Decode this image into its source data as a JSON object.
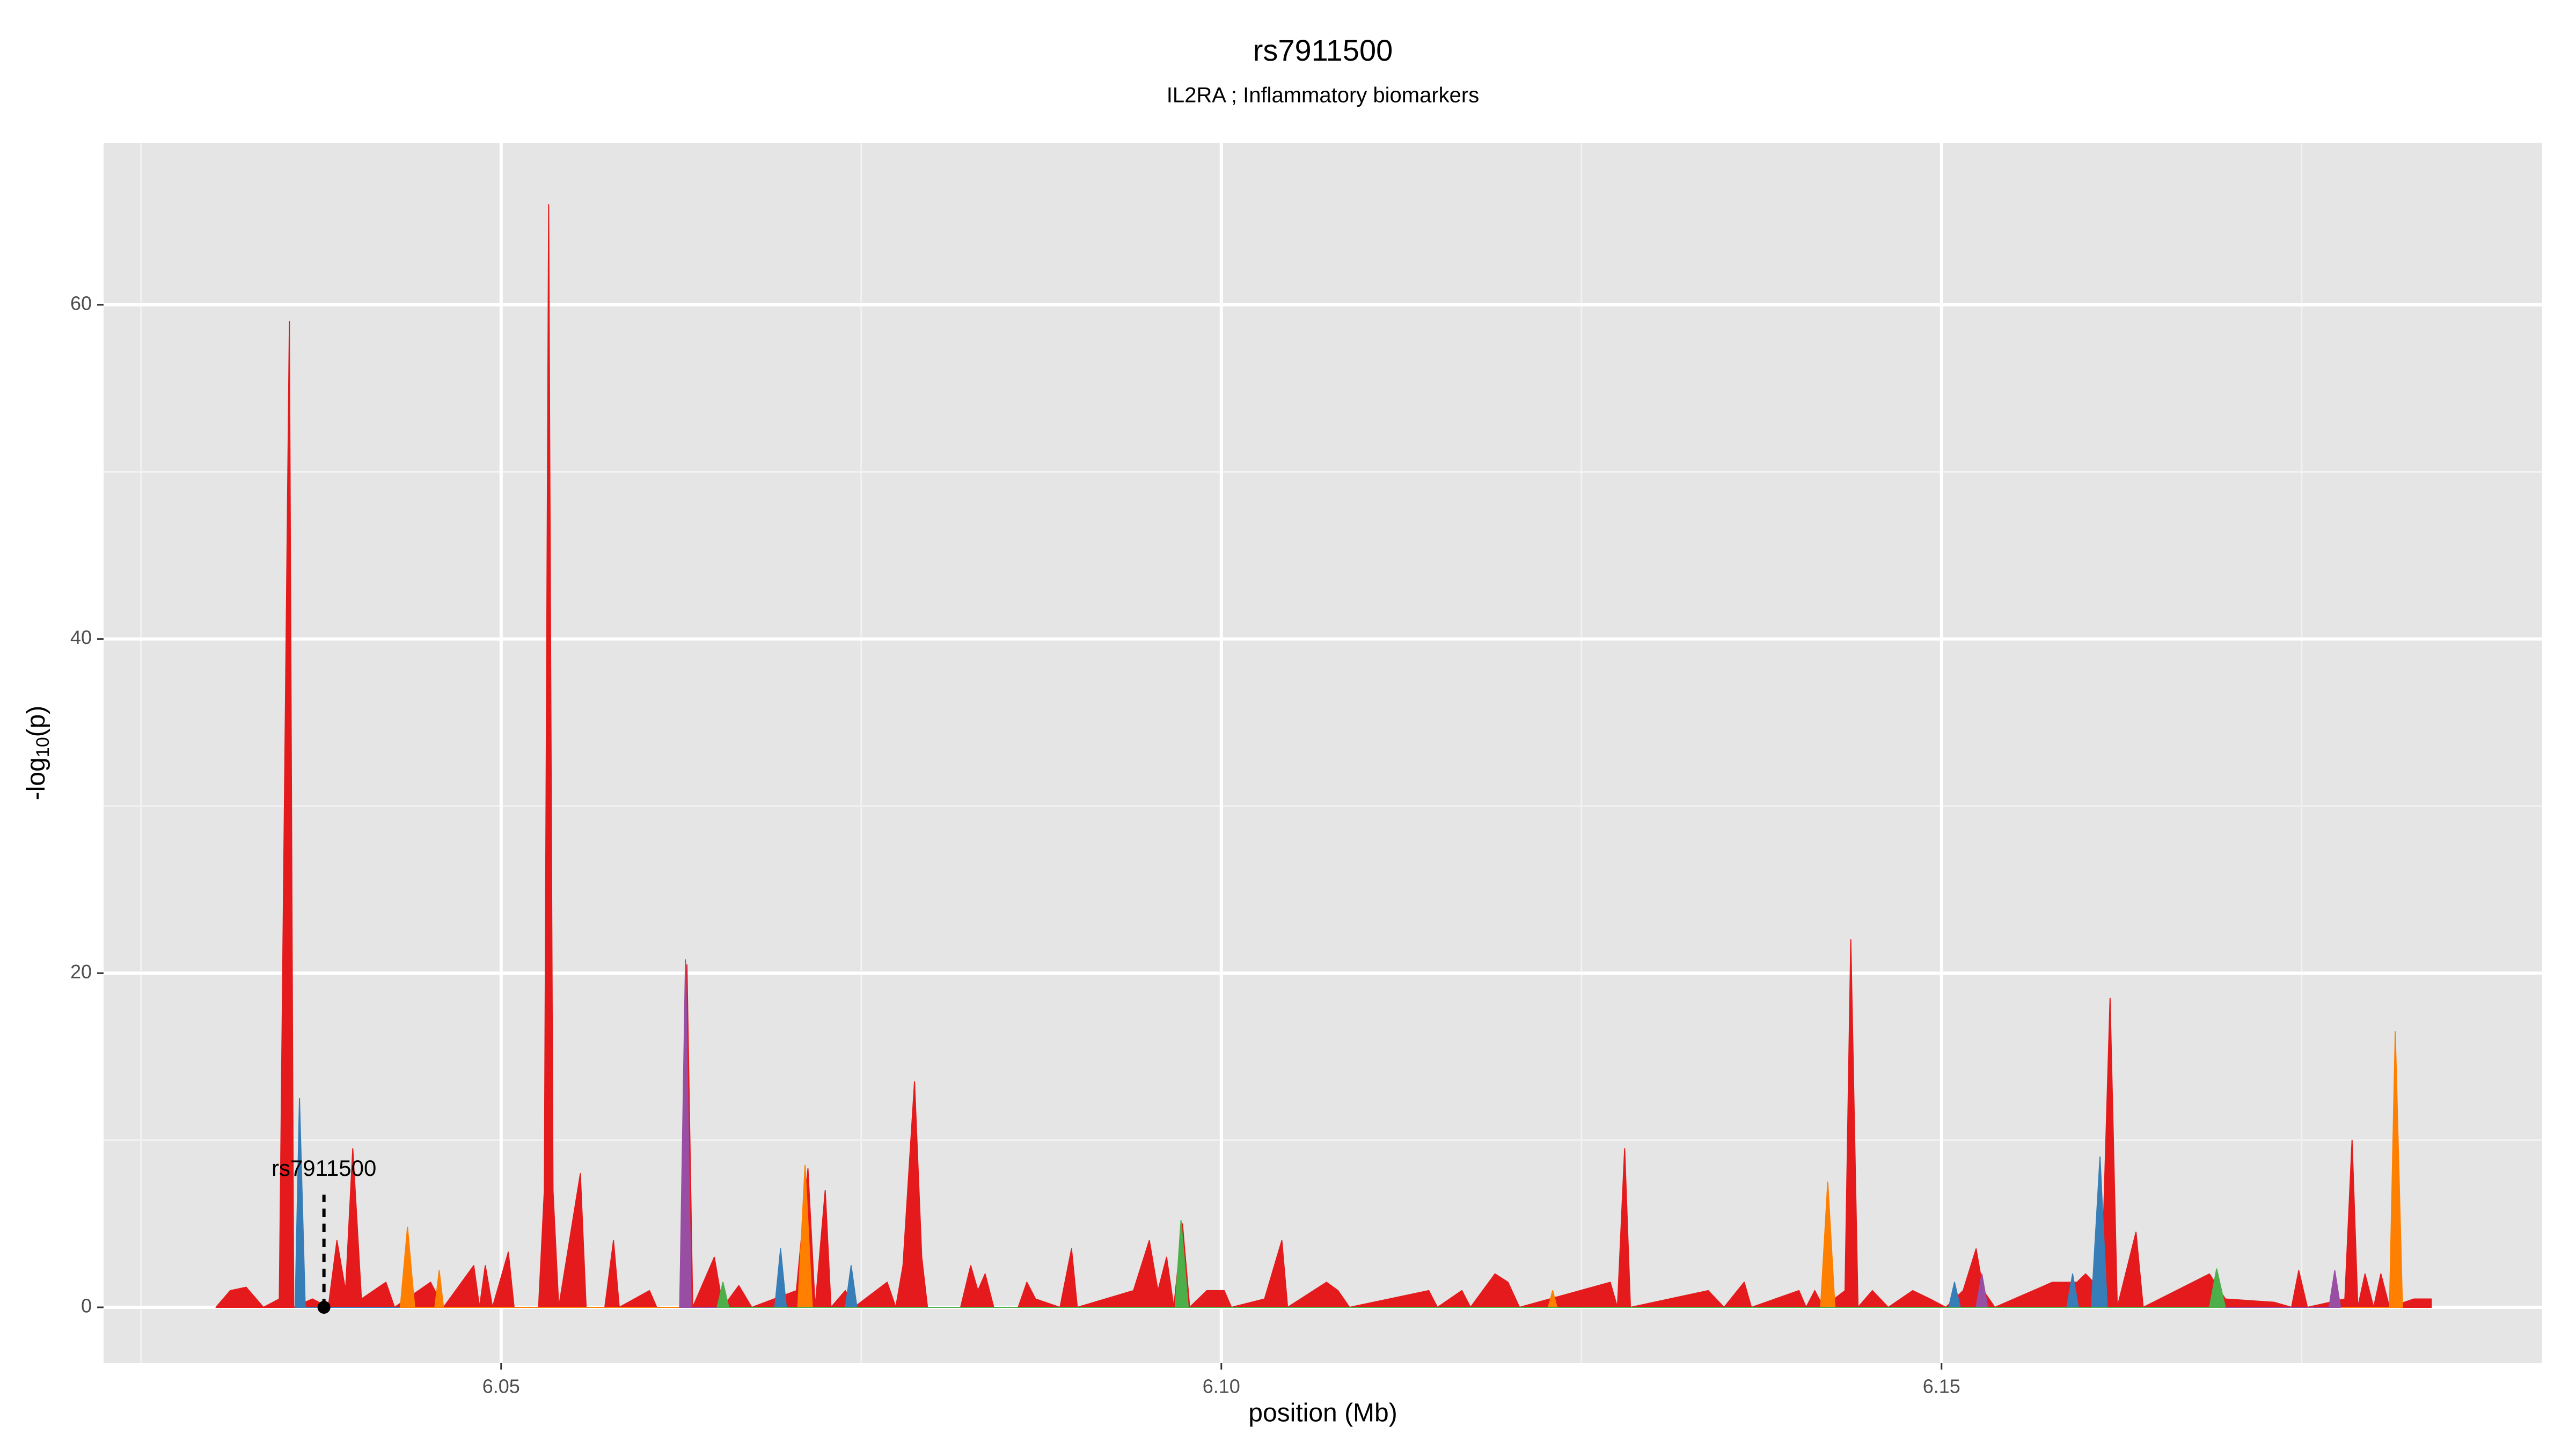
{
  "chart_data": {
    "type": "area",
    "title": "rs7911500",
    "subtitle": "IL2RA ; Inflammatory biomarkers",
    "xlabel": "position (Mb)",
    "ylabel": [
      "-log",
      "10",
      "(p)"
    ],
    "xlim": [
      6.0224,
      6.1917
    ],
    "ylim": [
      -3.34,
      69.7
    ],
    "xticks": [
      6.05,
      {
        "value": 6.1,
        "label": "6.10"
      },
      6.15
    ],
    "yticks": [
      0,
      20,
      40,
      60
    ],
    "xminor": [
      6.025,
      6.075,
      6.125,
      6.175
    ],
    "yminor": [
      10,
      30,
      50
    ],
    "grid": true,
    "annotation": {
      "label": "rs7911500",
      "x": 6.0377,
      "y": 0
    },
    "series": [
      {
        "color": "#e41a1c",
        "x": [
          6.0302,
          6.0312,
          6.0323,
          6.0335,
          6.0346,
          6.0353,
          6.0356,
          6.0369,
          6.038,
          6.0386,
          6.0392,
          6.0397,
          6.0403,
          6.042,
          6.0426,
          6.0451,
          6.046,
          6.0481,
          6.0485,
          6.0489,
          6.0494,
          6.0505,
          6.0509,
          6.0526,
          6.053,
          6.0533,
          6.0536,
          6.054,
          6.0555,
          6.0559,
          6.0572,
          6.0578,
          6.0582,
          6.0603,
          6.0608,
          6.0624,
          6.0629,
          6.0633,
          6.0648,
          6.0654,
          6.0665,
          6.0674,
          6.0705,
          6.0713,
          6.0718,
          6.0725,
          6.0729,
          6.0739,
          6.0745,
          6.0768,
          6.0774,
          6.0779,
          6.0787,
          6.0792,
          6.0796,
          6.0819,
          6.0826,
          6.0831,
          6.0836,
          6.0842,
          6.0859,
          6.0865,
          6.0871,
          6.0888,
          6.0896,
          6.09,
          6.0939,
          6.095,
          6.0956,
          6.0962,
          6.0967,
          6.0973,
          6.0978,
          6.099,
          6.1002,
          6.1007,
          6.103,
          6.1042,
          6.1046,
          6.1073,
          6.1081,
          6.1089,
          6.1144,
          6.115,
          6.1167,
          6.1173,
          6.119,
          6.1199,
          6.1207,
          6.127,
          6.1275,
          6.128,
          6.1284,
          6.1338,
          6.1349,
          6.1363,
          6.1368,
          6.1401,
          6.1406,
          6.1412,
          6.1418,
          6.1433,
          6.1437,
          6.1442,
          6.1452,
          6.1463,
          6.148,
          6.1492,
          6.1503,
          6.1515,
          6.1524,
          6.1529,
          6.1537,
          6.1577,
          6.1594,
          6.16,
          6.1611,
          6.1617,
          6.1622,
          6.1635,
          6.164,
          6.1686,
          6.1697,
          6.1731,
          6.1743,
          6.1748,
          6.1754,
          6.178,
          6.1785,
          6.1789,
          6.1794,
          6.18,
          6.1805,
          6.1811,
          6.1828,
          6.184
        ],
        "values": [
          0,
          1,
          1.2,
          0,
          0.5,
          59,
          0,
          0.5,
          0,
          4,
          1,
          9.5,
          0.5,
          1.5,
          0,
          1.5,
          0,
          2.5,
          0,
          2.5,
          0,
          3.3,
          0,
          0,
          7,
          66,
          7,
          0,
          8,
          0,
          0,
          4,
          0,
          1,
          0,
          0,
          20.5,
          0,
          3,
          0,
          1.3,
          0,
          1,
          8.3,
          0,
          7,
          0,
          1,
          0,
          1.5,
          0,
          2.5,
          13.5,
          3,
          0,
          0,
          2.5,
          1,
          2,
          0,
          0,
          1.5,
          0.5,
          0,
          3.5,
          0,
          1,
          4,
          1,
          3,
          0,
          5,
          0,
          1,
          1,
          0,
          0.5,
          4,
          0,
          1.5,
          1,
          0,
          1,
          0,
          1,
          0,
          2,
          1.5,
          0,
          1.5,
          0,
          9.5,
          0,
          1,
          0,
          1.5,
          0,
          1,
          0,
          1,
          0,
          1,
          22,
          0,
          1,
          0,
          1,
          0.5,
          0,
          1,
          3.5,
          1,
          0,
          1.5,
          1.5,
          2,
          1,
          18.5,
          0,
          4.5,
          0,
          2,
          0.5,
          0.3,
          0,
          2.2,
          0,
          0.5,
          10,
          0,
          2,
          0,
          2,
          0,
          0.5,
          0.5
        ]
      },
      {
        "color": "#377eb8",
        "x": [
          6.0357,
          6.036,
          6.0364,
          6.069,
          6.0694,
          6.0698,
          6.0739,
          6.0743,
          6.0747,
          6.1505,
          6.1509,
          6.1513,
          6.1587,
          6.1591,
          6.1595,
          6.1604,
          6.161,
          6.1615
        ],
        "values": [
          0,
          12.5,
          0,
          0,
          3.5,
          0,
          0,
          2.5,
          0,
          0,
          1.5,
          0,
          0,
          2,
          0,
          0,
          9,
          0
        ]
      },
      {
        "color": "#ff7f00",
        "x": [
          6.043,
          6.0435,
          6.044,
          6.0454,
          6.0457,
          6.046,
          6.0706,
          6.0711,
          6.0716,
          6.1227,
          6.123,
          6.1233,
          6.1416,
          6.1421,
          6.1426,
          6.1811,
          6.1815,
          6.182
        ],
        "values": [
          0,
          4.8,
          0,
          0,
          2.2,
          0,
          0,
          8.5,
          0,
          0,
          1,
          0,
          0,
          7.5,
          0,
          0,
          16.5,
          0
        ]
      },
      {
        "color": "#984ea3",
        "x": [
          6.0624,
          6.0628,
          6.0632,
          6.1524,
          6.1528,
          6.1532,
          6.1769,
          6.1773,
          6.1777
        ],
        "values": [
          0,
          20.8,
          0,
          0,
          2,
          0,
          0,
          2.2,
          0
        ]
      },
      {
        "color": "#4daf4a",
        "x": [
          6.065,
          6.0654,
          6.0658,
          6.0968,
          6.0972,
          6.0977,
          6.1686,
          6.1691,
          6.1697
        ],
        "values": [
          0,
          1.5,
          0,
          0,
          5.2,
          0,
          0,
          2.3,
          0
        ]
      }
    ]
  }
}
